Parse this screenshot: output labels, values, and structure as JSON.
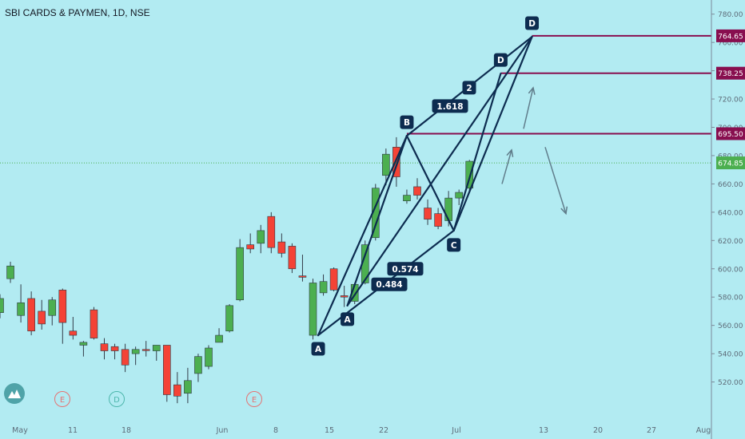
{
  "header": {
    "title": "SBI CARDS & PAYMEN, 1D, NSE"
  },
  "chart_data": {
    "type": "candlestick",
    "title": "SBI CARDS & PAYMEN, 1D, NSE",
    "ylim": [
      510,
      785
    ],
    "y_ticks": [
      520,
      540,
      560,
      580,
      600,
      620,
      640,
      660,
      680,
      700,
      720,
      740,
      760,
      780
    ],
    "x_ticks": [
      "May",
      "11",
      "18",
      "Jun",
      "8",
      "15",
      "22",
      "Jul",
      "13",
      "20",
      "27",
      "Aug"
    ],
    "candles": [
      {
        "o": 569,
        "h": 582,
        "l": 565,
        "c": 579,
        "dir": "up"
      },
      {
        "o": 593,
        "h": 605,
        "l": 590,
        "c": 602,
        "dir": "up"
      },
      {
        "o": 567,
        "h": 589,
        "l": 562,
        "c": 576,
        "dir": "up"
      },
      {
        "o": 579,
        "h": 584,
        "l": 553,
        "c": 556,
        "dir": "down"
      },
      {
        "o": 570,
        "h": 578,
        "l": 557,
        "c": 561,
        "dir": "down"
      },
      {
        "o": 567,
        "h": 580,
        "l": 560,
        "c": 578,
        "dir": "up"
      },
      {
        "o": 585,
        "h": 586,
        "l": 547,
        "c": 562,
        "dir": "down"
      },
      {
        "o": 556,
        "h": 566,
        "l": 550,
        "c": 553,
        "dir": "down"
      },
      {
        "o": 546,
        "h": 549,
        "l": 538,
        "c": 548,
        "dir": "up"
      },
      {
        "o": 571,
        "h": 573,
        "l": 550,
        "c": 551,
        "dir": "down"
      },
      {
        "o": 547,
        "h": 551,
        "l": 536,
        "c": 542,
        "dir": "down"
      },
      {
        "o": 542,
        "h": 547,
        "l": 536,
        "c": 545,
        "dir": "down"
      },
      {
        "o": 543,
        "h": 547,
        "l": 527,
        "c": 532,
        "dir": "down"
      },
      {
        "o": 540,
        "h": 545,
        "l": 532,
        "c": 543,
        "dir": "up"
      },
      {
        "o": 543,
        "h": 549,
        "l": 538,
        "c": 543,
        "dir": "down"
      },
      {
        "o": 542,
        "h": 546,
        "l": 535,
        "c": 546,
        "dir": "up"
      },
      {
        "o": 546,
        "h": 546,
        "l": 506,
        "c": 511,
        "dir": "down"
      },
      {
        "o": 510,
        "h": 527,
        "l": 505,
        "c": 518,
        "dir": "down"
      },
      {
        "o": 512,
        "h": 530,
        "l": 505,
        "c": 521,
        "dir": "up"
      },
      {
        "o": 526,
        "h": 540,
        "l": 520,
        "c": 538,
        "dir": "up"
      },
      {
        "o": 531,
        "h": 546,
        "l": 529,
        "c": 544,
        "dir": "up"
      },
      {
        "o": 548,
        "h": 558,
        "l": 548,
        "c": 553,
        "dir": "up"
      },
      {
        "o": 556,
        "h": 575,
        "l": 555,
        "c": 574,
        "dir": "up"
      },
      {
        "o": 578,
        "h": 621,
        "l": 577,
        "c": 615,
        "dir": "up"
      },
      {
        "o": 617,
        "h": 625,
        "l": 611,
        "c": 614,
        "dir": "down"
      },
      {
        "o": 618,
        "h": 631,
        "l": 611,
        "c": 627,
        "dir": "up"
      },
      {
        "o": 637,
        "h": 640,
        "l": 611,
        "c": 615,
        "dir": "down"
      },
      {
        "o": 619,
        "h": 625,
        "l": 608,
        "c": 611,
        "dir": "down"
      },
      {
        "o": 616,
        "h": 618,
        "l": 597,
        "c": 600,
        "dir": "down"
      },
      {
        "o": 594,
        "h": 610,
        "l": 591,
        "c": 595,
        "dir": "down"
      },
      {
        "o": 553,
        "h": 593,
        "l": 550,
        "c": 590,
        "dir": "up"
      },
      {
        "o": 583,
        "h": 596,
        "l": 581,
        "c": 591,
        "dir": "up"
      },
      {
        "o": 600,
        "h": 601,
        "l": 584,
        "c": 585,
        "dir": "down"
      },
      {
        "o": 580,
        "h": 588,
        "l": 573,
        "c": 581,
        "dir": "down"
      },
      {
        "o": 577,
        "h": 590,
        "l": 575,
        "c": 589,
        "dir": "up"
      },
      {
        "o": 590,
        "h": 620,
        "l": 589,
        "c": 617,
        "dir": "up"
      },
      {
        "o": 622,
        "h": 660,
        "l": 620,
        "c": 657,
        "dir": "up"
      },
      {
        "o": 666,
        "h": 685,
        "l": 659,
        "c": 681,
        "dir": "up"
      },
      {
        "o": 686,
        "h": 693,
        "l": 658,
        "c": 665,
        "dir": "down"
      },
      {
        "o": 652,
        "h": 656,
        "l": 646,
        "c": 648,
        "dir": "up"
      },
      {
        "o": 658,
        "h": 664,
        "l": 649,
        "c": 652,
        "dir": "down"
      },
      {
        "o": 643,
        "h": 649,
        "l": 631,
        "c": 635,
        "dir": "down"
      },
      {
        "o": 639,
        "h": 643,
        "l": 628,
        "c": 630,
        "dir": "down"
      },
      {
        "o": 634,
        "h": 655,
        "l": 630,
        "c": 650,
        "dir": "up"
      },
      {
        "o": 650,
        "h": 656,
        "l": 645,
        "c": 654,
        "dir": "up"
      },
      {
        "o": 657,
        "h": 677,
        "l": 655,
        "c": 676,
        "dir": "up"
      }
    ],
    "price_labels": [
      {
        "value": 764.65,
        "text": "764.65",
        "color": "#880e4f"
      },
      {
        "value": 738.25,
        "text": "738.25",
        "color": "#880e4f"
      },
      {
        "value": 695.5,
        "text": "695.50",
        "color": "#880e4f"
      },
      {
        "value": 674.85,
        "text": "674.85",
        "color": "#4caf50"
      }
    ],
    "pattern_points": [
      {
        "text": "A",
        "bar": 30.5,
        "price": 553
      },
      {
        "text": "A",
        "bar": 33.3,
        "price": 574
      },
      {
        "text": "B",
        "bar": 39,
        "price": 694
      },
      {
        "text": "C",
        "bar": 43.5,
        "price": 627
      },
      {
        "text": "D",
        "bar": 48,
        "price": 738
      },
      {
        "text": "D",
        "bar": 51,
        "price": 764
      }
    ],
    "pattern_labels": [
      "0.484",
      "0.574",
      "1.618",
      "2"
    ],
    "event_markers": [
      "E",
      "D",
      "E"
    ],
    "colors": {
      "background": "#b2ebf2",
      "up": "#4caf50",
      "down": "#f44336",
      "pattern": "#0d2c50",
      "level": "#880e4f",
      "arrow": "#607d8b"
    }
  }
}
